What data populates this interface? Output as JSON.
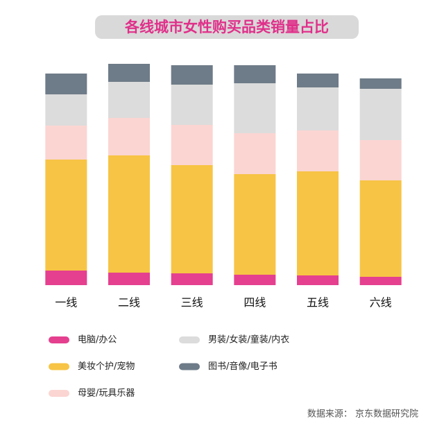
{
  "chart_data": {
    "type": "stacked-bar",
    "title": "各线城市女性购买品类销量占比",
    "categories": [
      "一线",
      "二线",
      "三线",
      "四线",
      "五线",
      "六线"
    ],
    "series": [
      {
        "name": "电脑/办公",
        "color": "#e5408f",
        "values": [
          21,
          18,
          17,
          15,
          14,
          12
        ]
      },
      {
        "name": "美妆个护/宠物",
        "color": "#f7c445",
        "values": [
          160,
          169,
          156,
          145,
          150,
          139
        ]
      },
      {
        "name": "母婴/玩具乐器",
        "color": "#fbd5d2",
        "values": [
          49,
          54,
          58,
          59,
          59,
          58
        ]
      },
      {
        "name": "男装/女装/童装/内衣",
        "color": "#dcdcdc",
        "values": [
          45,
          52,
          58,
          72,
          62,
          74
        ]
      },
      {
        "name": "图书/音像/电子书",
        "color": "#6e7b88",
        "values": [
          30,
          26,
          28,
          26,
          20,
          15
        ]
      }
    ],
    "ylim": [
      0,
      320
    ],
    "source": "数据来源： 京东数据研究院"
  }
}
